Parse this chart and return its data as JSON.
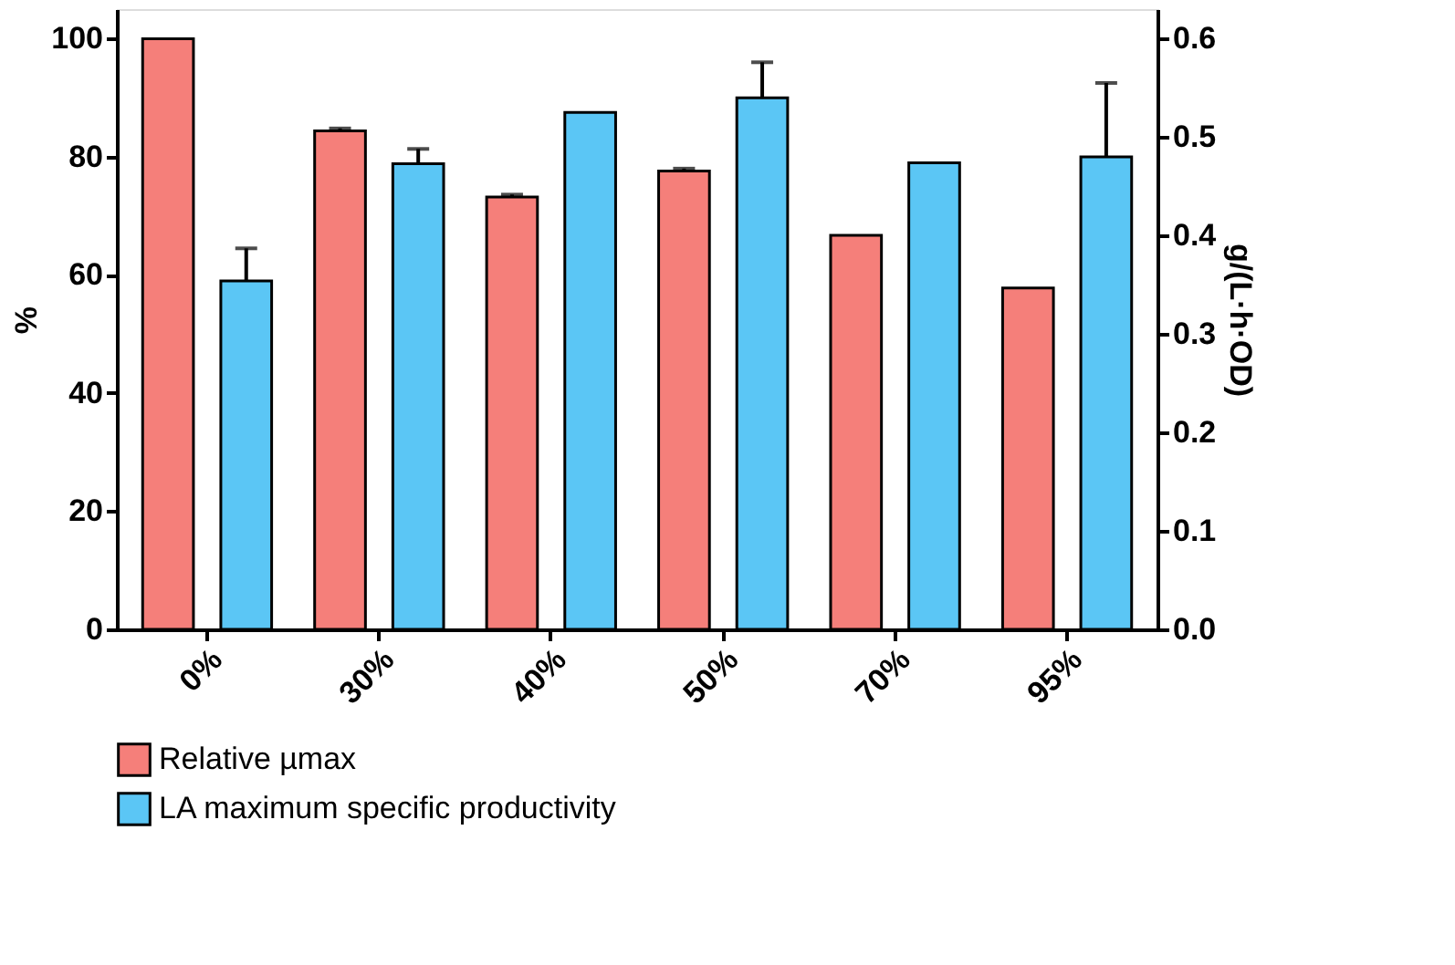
{
  "chart_data": {
    "type": "bar",
    "categories": [
      "0%",
      "30%",
      "40%",
      "50%",
      "70%",
      "95%"
    ],
    "ylabel": "%",
    "y2label": "g/(L·h·OD)",
    "ylim": [
      0,
      105
    ],
    "yticks": [
      0,
      20,
      40,
      60,
      80,
      100
    ],
    "y2lim": [
      0,
      0.63
    ],
    "y2ticks": [
      {
        "value": 0,
        "label": "0.0"
      },
      0.1,
      0.2,
      0.3,
      0.4,
      0.5,
      0.6
    ],
    "series": [
      {
        "name": "Relative µmax",
        "color": "#f57f7a",
        "values": [
          100,
          84.4,
          73.2,
          77.6,
          66.7,
          57.8
        ],
        "errors": [
          null,
          0.4,
          0.4,
          0.4,
          null,
          null
        ]
      },
      {
        "name": "LA maximum specific productivity",
        "color": "#5bc6f5",
        "axis": "y2",
        "values": [
          0.354,
          0.473,
          0.525,
          0.54,
          0.474,
          0.48
        ],
        "errors": [
          0.033,
          0.015,
          null,
          0.036,
          null,
          0.075
        ]
      }
    ],
    "legend": "bottom",
    "grid": false
  }
}
